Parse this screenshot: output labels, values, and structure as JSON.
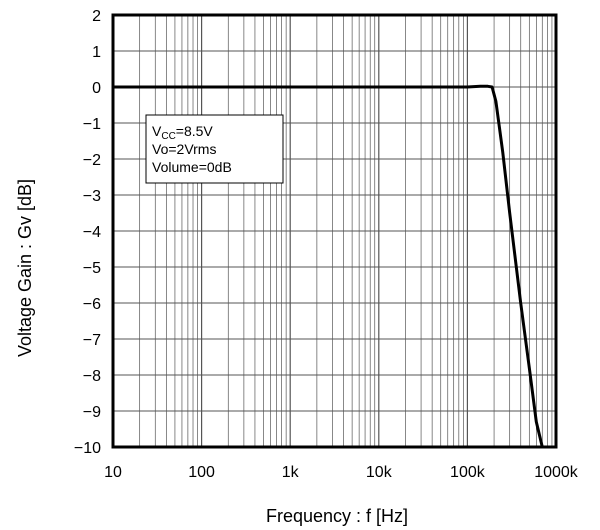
{
  "chart_data": {
    "type": "line",
    "title": "",
    "xlabel": "Frequency : f [Hz]",
    "ylabel": "Voltage Gain : Gv [dB]",
    "xscale": "log",
    "xlim": [
      10,
      1000000
    ],
    "ylim": [
      -10,
      2
    ],
    "grid": true,
    "x_tick_labels": [
      "10",
      "100",
      "1k",
      "10k",
      "100k",
      "1000k"
    ],
    "y_tick_labels": [
      "2",
      "1",
      "0",
      "−1",
      "−2",
      "−3",
      "−4",
      "−5",
      "−6",
      "−7",
      "−8",
      "−9",
      "−10"
    ],
    "annotation": {
      "vcc_main": "V",
      "vcc_sub": "CC",
      "vcc_rest": "=8.5V",
      "vo": "Vo=2Vrms",
      "volume": "Volume=0dB"
    },
    "series": [
      {
        "x": [
          10,
          100,
          1000,
          10000,
          100000,
          140000,
          170000,
          190000,
          210000,
          250000,
          300000,
          400000,
          500000,
          600000,
          700000
        ],
        "y": [
          0,
          0,
          0,
          0,
          0,
          0.02,
          0.02,
          0,
          -0.4,
          -1.8,
          -3.5,
          -6.0,
          -7.8,
          -9.3,
          -10
        ]
      }
    ]
  }
}
